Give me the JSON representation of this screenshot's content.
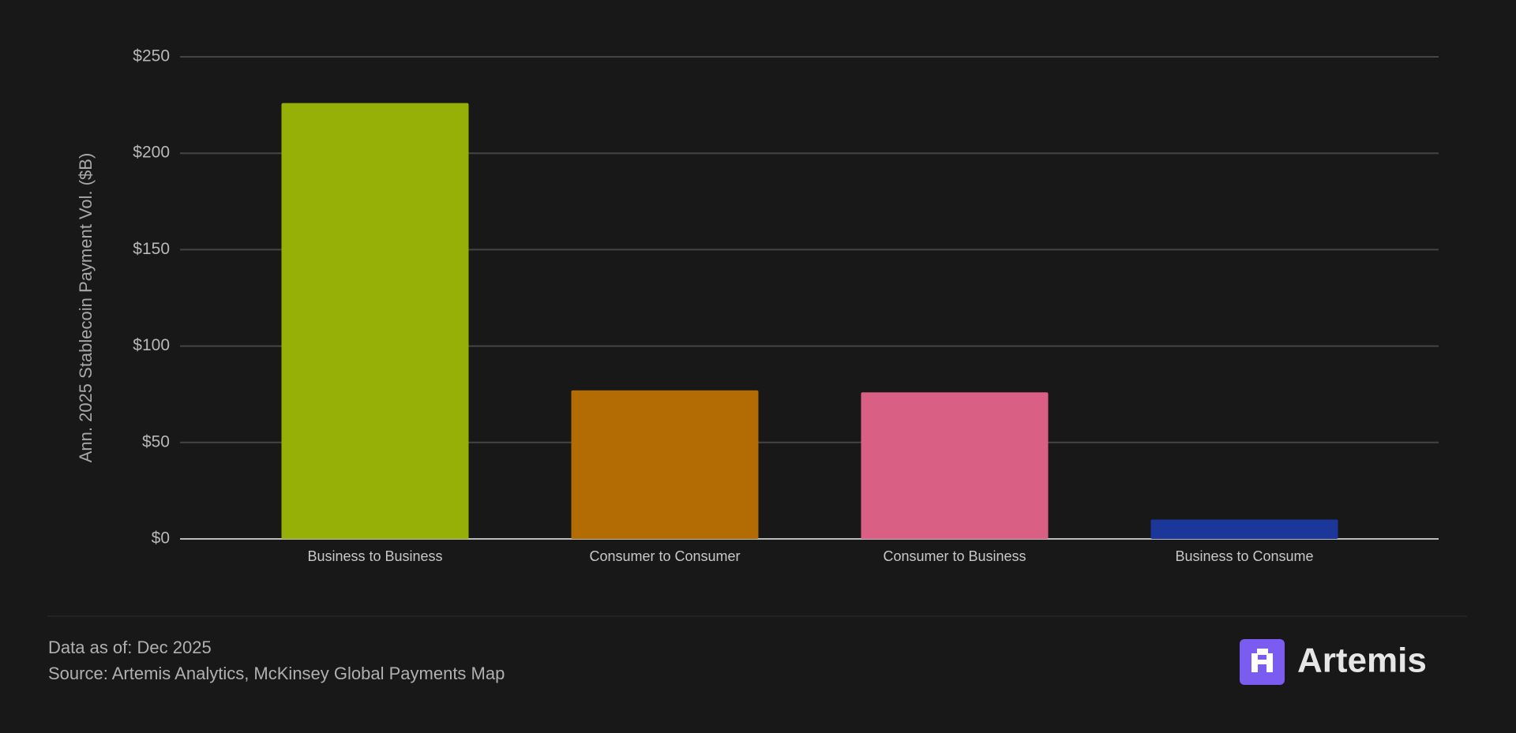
{
  "chart_data": {
    "type": "bar",
    "y_axis_label": "Ann. 2025 Stablecoin Payment Vol. ($B)",
    "categories": [
      "Business to Business",
      "Consumer to Consumer",
      "Consumer to Business",
      "Business to Consume"
    ],
    "values": [
      226,
      77,
      76,
      10
    ],
    "colors": [
      "#97b007",
      "#b36c04",
      "#d95f85",
      "#1a3799"
    ],
    "ylim": [
      0,
      250
    ],
    "yticks": [
      {
        "value": 0,
        "label": "$0"
      },
      {
        "value": 50,
        "label": "$50"
      },
      {
        "value": 100,
        "label": "$100"
      },
      {
        "value": 150,
        "label": "$150"
      },
      {
        "value": 200,
        "label": "$200"
      },
      {
        "value": 250,
        "label": "$250"
      }
    ],
    "grid": true
  },
  "footer": {
    "data_as_of": "Data as of: Dec 2025",
    "source": "Source: Artemis Analytics, McKinsey Global Payments Map",
    "brand": "Artemis"
  }
}
